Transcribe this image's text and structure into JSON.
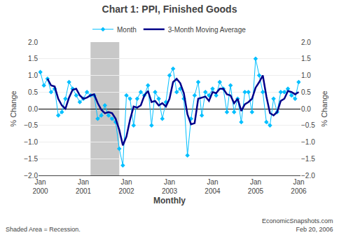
{
  "chart_data": {
    "type": "line",
    "title": "Chart 1: PPI, Finished Goods",
    "xlabel": "Monthly",
    "ylabel": "% Change",
    "y2label": "% Change",
    "categories": [
      "Jan\n2000",
      null,
      null,
      null,
      null,
      null,
      null,
      null,
      null,
      null,
      null,
      null,
      "Jan\n2001",
      null,
      null,
      null,
      null,
      null,
      null,
      null,
      null,
      null,
      null,
      null,
      "Jan\n2002",
      null,
      null,
      null,
      null,
      null,
      null,
      null,
      null,
      null,
      null,
      null,
      "Jan\n2003",
      null,
      null,
      null,
      null,
      null,
      null,
      null,
      null,
      null,
      null,
      null,
      "Jan\n2004",
      null,
      null,
      null,
      null,
      null,
      null,
      null,
      null,
      null,
      null,
      null,
      "Jan\n2005",
      null,
      null,
      null,
      null,
      null,
      null,
      null,
      null,
      null,
      null,
      null,
      "Jan\n2006"
    ],
    "series": [
      {
        "name": "Month",
        "color": "#00BFFF",
        "marker": "diamond",
        "line_style": "solid",
        "values": [
          1.1,
          0.7,
          0.9,
          0.5,
          0.6,
          -0.2,
          -0.1,
          0.3,
          0.8,
          0.6,
          0.4,
          0.2,
          0.3,
          0.5,
          0.4,
          0.4,
          -0.3,
          -0.2,
          0.1,
          -0.2,
          -0.3,
          -0.4,
          -1.2,
          -1.7,
          0.4,
          0.3,
          -0.5,
          0.3,
          0.5,
          0.4,
          0.7,
          -0.5,
          0.5,
          0.3,
          -0.3,
          0.2,
          1.0,
          1.2,
          0.5,
          0.6,
          0.3,
          -1.4,
          -0.3,
          0.4,
          0.8,
          -0.2,
          0.5,
          0.4,
          0.6,
          0.4,
          0.8,
          0.6,
          -0.1,
          0.7,
          -0.1,
          0.3,
          -0.4,
          0.5,
          0.5,
          -0.1,
          1.5,
          1.0,
          0.5,
          -0.4,
          -0.5,
          0.3,
          -0.1,
          0.5,
          0.5,
          0.6,
          0.4,
          0.3,
          0.8
        ]
      },
      {
        "name": "3-Month Moving Average",
        "color": "#00008B",
        "line_style": "solid",
        "values": [
          null,
          null,
          0.9,
          0.7,
          0.6667,
          0.3,
          0.1,
          0.0,
          0.3333,
          0.5667,
          0.6,
          0.4,
          0.3,
          0.3333,
          0.4,
          0.4333,
          0.1667,
          -0.0333,
          -0.1333,
          -0.1,
          -0.1333,
          -0.3,
          -0.6333,
          -1.1,
          -0.8333,
          -0.3333,
          0.0667,
          0.0333,
          0.1,
          0.4,
          0.5333,
          0.2,
          0.2333,
          0.1,
          0.1667,
          0.0667,
          0.3,
          0.8,
          0.9,
          0.7667,
          0.4667,
          -0.1667,
          -0.4667,
          -0.4333,
          0.3,
          0.3333,
          0.3667,
          0.2333,
          0.5,
          0.4667,
          0.6,
          0.6,
          0.4333,
          0.4,
          0.1667,
          0.3,
          -0.0667,
          0.1333,
          0.2,
          0.3,
          0.6333,
          0.8,
          1.0,
          0.3667,
          -0.1333,
          -0.2,
          -0.1,
          0.2333,
          0.3,
          0.5333,
          0.5,
          0.4333,
          0.5
        ]
      }
    ],
    "ylim": [
      -2.0,
      2.0
    ],
    "yticks": [
      {
        "value": -2.0,
        "label": "−2.0"
      },
      {
        "value": -1.5,
        "label": "−1.5"
      },
      {
        "value": -1.0,
        "label": "−1.0"
      },
      {
        "value": -0.5,
        "label": "−0.5"
      },
      {
        "value": 0.0,
        "label": "0.0"
      },
      {
        "value": 0.5,
        "label": "0.5"
      },
      {
        "value": 1.0,
        "label": "1.0"
      },
      {
        "value": 1.5,
        "label": "1.5"
      },
      {
        "value": 2.0,
        "label": "2.0"
      }
    ],
    "y2lim": [
      -2.0,
      2.0
    ],
    "y2ticks": [
      {
        "value": -2.0,
        "label": "−2.0"
      },
      {
        "value": -1.5,
        "label": "−1.5"
      },
      {
        "value": -1.0,
        "label": "−1.0"
      },
      {
        "value": -0.5,
        "label": "−0.5"
      },
      {
        "value": 0.0,
        "label": "0.0"
      },
      {
        "value": 0.5,
        "label": "0.5"
      },
      {
        "value": 1.0,
        "label": "1.0"
      },
      {
        "value": 1.5,
        "label": "1.5"
      },
      {
        "value": 2.0,
        "label": "2.0"
      }
    ],
    "shaded_area": {
      "start": 14,
      "end": 22,
      "color": "#C8C8C8"
    },
    "annotations": [
      {
        "text": "Shaded Area = Recession."
      },
      {
        "text": "EconomicSnapshots.com\nFeb 20, 2006"
      }
    ],
    "grid": true,
    "legend": "top"
  }
}
